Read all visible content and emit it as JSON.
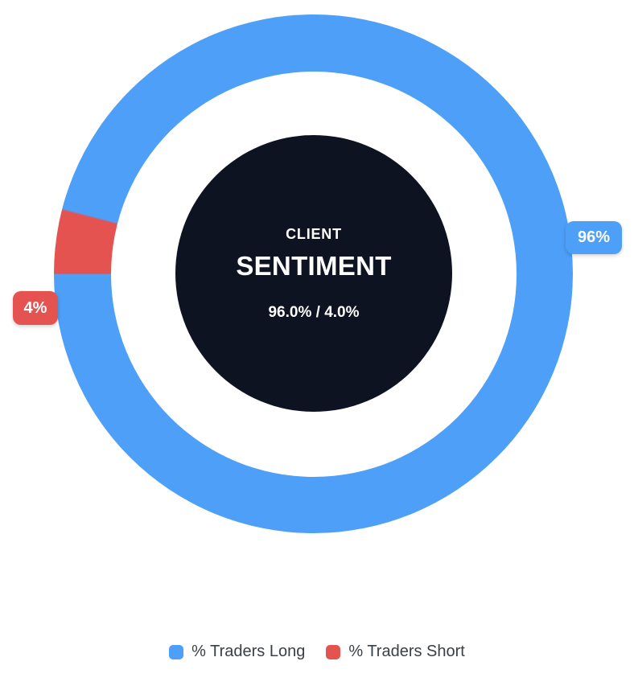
{
  "chart_data": {
    "type": "pie",
    "variant": "donut",
    "title": "CLIENT SENTIMENT",
    "categories": [
      "% Traders Long",
      "% Traders Short"
    ],
    "series": [
      {
        "name": "% Traders Long",
        "value": 96,
        "color": "#4D9FF8"
      },
      {
        "name": "% Traders Short",
        "value": 4,
        "color": "#E4534F"
      }
    ],
    "start_angle_deg": 270,
    "direction": "clockwise",
    "legend_position": "bottom",
    "data_labels": [
      "96%",
      "4%"
    ],
    "center_text": [
      "CLIENT",
      "SENTIMENT",
      "96.0% / 4.0%"
    ]
  },
  "center": {
    "title_top": "CLIENT",
    "title_main": "SENTIMENT",
    "values_text": "96.0% / 4.0%"
  },
  "badges": {
    "long_label": "96%",
    "short_label": "4%"
  },
  "legend": {
    "long_label": "% Traders Long",
    "short_label": "% Traders Short"
  },
  "colors": {
    "long": "#4D9FF8",
    "short": "#E4534F",
    "center_bg": "#0E1321",
    "center_text": "#FFFFFF",
    "badge_text": "#FFFFFF",
    "legend_text": "#3B4045",
    "background": "#FFFFFF"
  }
}
